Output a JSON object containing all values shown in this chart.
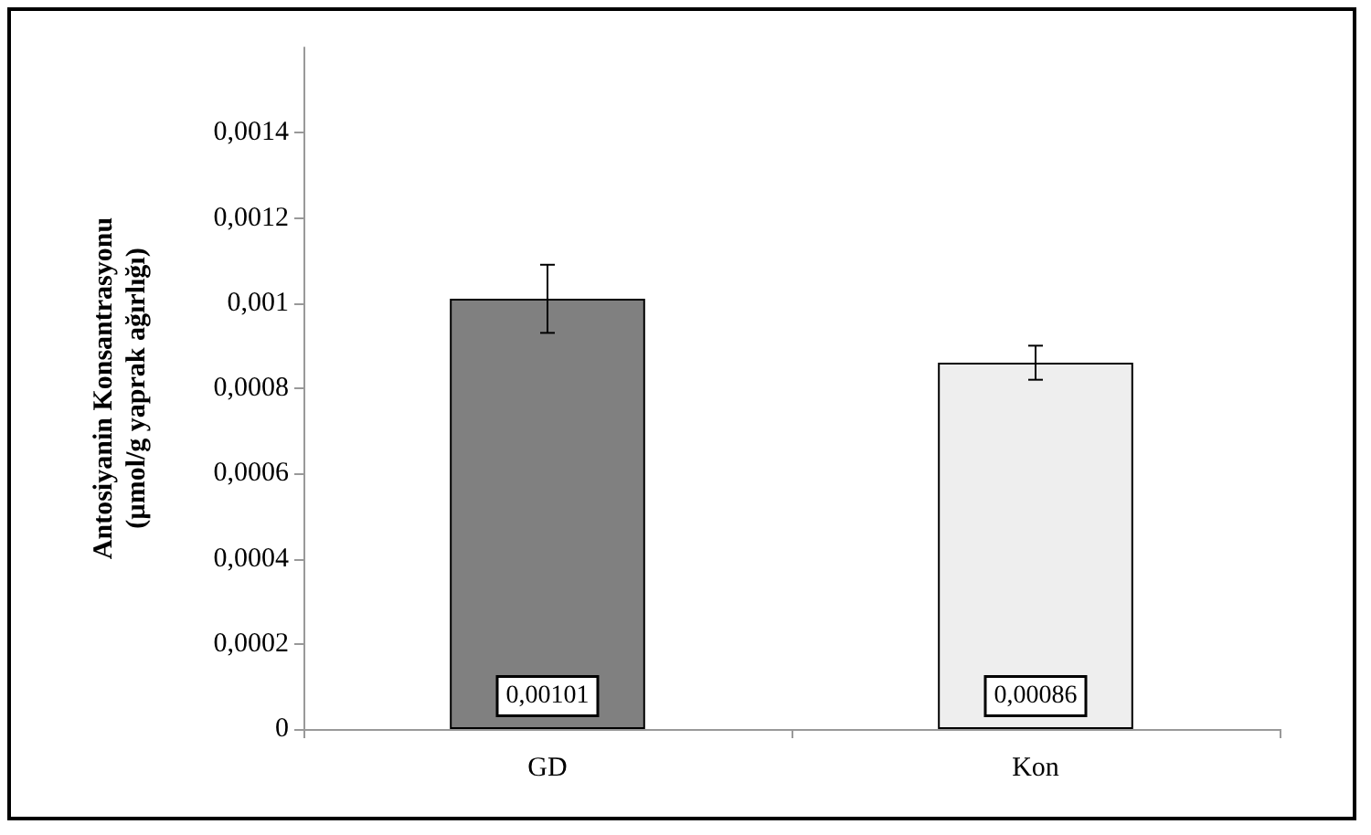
{
  "chart_data": {
    "type": "bar",
    "ylabel": "Antosiyanin Konsantrasyonu\n(µmol/g yaprak ağırlığı)",
    "categories": [
      "GD",
      "Kon"
    ],
    "values": [
      0.00101,
      0.00086
    ],
    "colors": [
      "#808080",
      "#eeeeee"
    ],
    "errors": [
      8e-05,
      4e-05
    ],
    "value_labels": [
      "0,00101",
      "0,00086"
    ],
    "ylim": [
      0,
      0.0016
    ],
    "yticks": [
      {
        "value": 0,
        "label": "0"
      },
      {
        "value": 0.0002,
        "label": "0,0002"
      },
      {
        "value": 0.0004,
        "label": "0,0004"
      },
      {
        "value": 0.0006,
        "label": "0,0006"
      },
      {
        "value": 0.0008,
        "label": "0,0008"
      },
      {
        "value": 0.001,
        "label": "0,001"
      },
      {
        "value": 0.0012,
        "label": "0,0012"
      },
      {
        "value": 0.0014,
        "label": "0,0014"
      }
    ],
    "grid": false
  }
}
